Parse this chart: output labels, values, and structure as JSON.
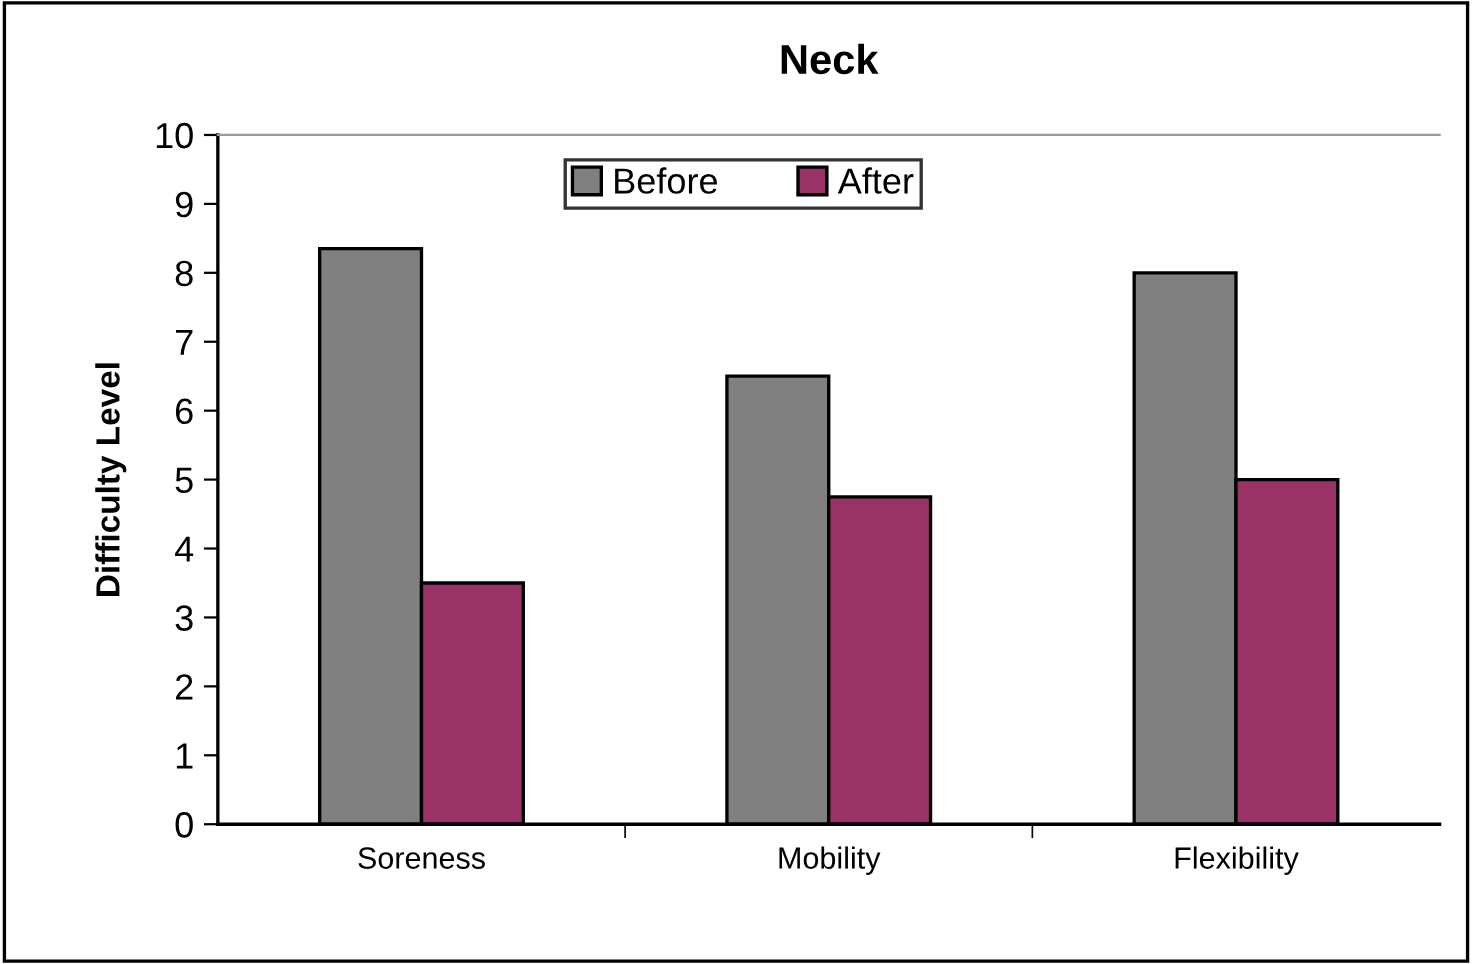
{
  "chart_data": {
    "type": "bar",
    "title": "Neck",
    "ylabel": "Difficulty Level",
    "categories": [
      "Soreness",
      "Mobility",
      "Flexibility"
    ],
    "series": [
      {
        "name": "Before",
        "color": "#808080",
        "values": [
          8.35,
          6.5,
          8
        ]
      },
      {
        "name": "After",
        "color": "#993366",
        "values": [
          3.5,
          4.75,
          5
        ]
      }
    ],
    "ylim": [
      0,
      10
    ],
    "yticks": [
      0,
      1,
      2,
      3,
      4,
      5,
      6,
      7,
      8,
      9,
      10
    ],
    "grid": false,
    "legend": "top"
  }
}
